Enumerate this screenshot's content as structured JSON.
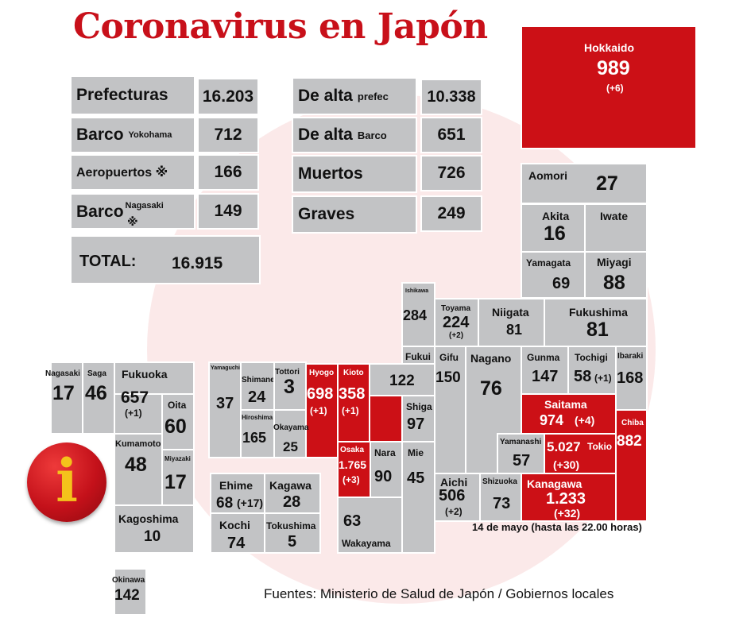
{
  "title": "Coronavirus en Japón",
  "summary": {
    "prefecturas": {
      "label": "Prefecturas",
      "value": "16.203"
    },
    "barco_yokohama": {
      "label": "Barco",
      "sub": "Yokohama",
      "value": "712"
    },
    "aeropuertos": {
      "label": "Aeropuertos ※",
      "value": "166"
    },
    "barco_nagasaki": {
      "label": "Barco",
      "mark": "※",
      "sub": "Nagasaki",
      "value": "149"
    },
    "total": {
      "label": "TOTAL:",
      "value": "16.915"
    },
    "alta_prefec": {
      "label": "De alta",
      "sub": "prefec",
      "value": "10.338"
    },
    "alta_barco": {
      "label": "De alta",
      "sub": "Barco",
      "value": "651"
    },
    "muertos": {
      "label": "Muertos",
      "value": "726"
    },
    "graves": {
      "label": "Graves",
      "value": "249"
    }
  },
  "prefectures": {
    "hokkaido": {
      "name": "Hokkaido",
      "value": "989",
      "delta": "(+6)"
    },
    "aomori": {
      "name": "Aomori",
      "value": "27"
    },
    "akita": {
      "name": "Akita",
      "value": "16"
    },
    "iwate": {
      "name": "Iwate"
    },
    "yamagata": {
      "name": "Yamagata",
      "value": "69"
    },
    "miyagi": {
      "name": "Miyagi",
      "value": "88"
    },
    "ishikawa": {
      "name": "Ishikawa",
      "value": "284"
    },
    "toyama": {
      "name": "Toyama",
      "value": "224",
      "delta": "(+2)"
    },
    "niigata": {
      "name": "Niigata",
      "value": "81"
    },
    "fukushima": {
      "name": "Fukushima",
      "value": "81"
    },
    "fukui": {
      "name": "Fukui",
      "value": "122"
    },
    "gifu": {
      "name": "Gifu",
      "value": "150"
    },
    "nagano": {
      "name": "Nagano",
      "value": "76"
    },
    "gunma": {
      "name": "Gunma",
      "value": "147"
    },
    "tochigi": {
      "name": "Tochigi",
      "value": "58",
      "delta": "(+1)"
    },
    "ibaraki": {
      "name": "Ibaraki",
      "value": "168"
    },
    "saitama": {
      "name": "Saitama",
      "value": "974",
      "delta": "(+4)"
    },
    "chiba": {
      "name": "Chiba",
      "value": "882"
    },
    "tokio": {
      "name": "Tokio",
      "value": "5.027",
      "delta": "(+30)"
    },
    "yamanashi": {
      "name": "Yamanashi",
      "value": "57"
    },
    "kanagawa": {
      "name": "Kanagawa",
      "value": "1.233",
      "delta": "(+32)"
    },
    "shizuoka": {
      "name": "Shizuoka",
      "value": "73"
    },
    "aichi": {
      "name": "Aichi",
      "value": "506",
      "delta": "(+2)"
    },
    "shiga": {
      "name": "Shiga",
      "value": "97"
    },
    "mie": {
      "name": "Mie",
      "value": "45"
    },
    "nara": {
      "name": "Nara",
      "value": "90"
    },
    "kioto": {
      "name": "Kioto",
      "value": "358",
      "delta": "(+1)"
    },
    "osaka": {
      "name": "Osaka",
      "value": "1.765",
      "delta": "(+3)"
    },
    "hyogo": {
      "name": "Hyogo",
      "value": "698",
      "delta": "(+1)"
    },
    "wakayama": {
      "name": "Wakayama",
      "value": "63"
    },
    "tottori": {
      "name": "Tottori",
      "value": "3"
    },
    "shimane": {
      "name": "Shimane",
      "value": "24"
    },
    "yamaguchi": {
      "name": "Yamaguchi",
      "value": "37"
    },
    "hiroshima": {
      "name": "Hiroshima",
      "value": "165"
    },
    "okayama": {
      "name": "Okayama",
      "value": "25"
    },
    "ehime": {
      "name": "Ehime",
      "value": "68",
      "delta": "(+17)"
    },
    "kagawa": {
      "name": "Kagawa",
      "value": "28"
    },
    "kochi": {
      "name": "Kochi",
      "value": "74"
    },
    "tokushima": {
      "name": "Tokushima",
      "value": "5"
    },
    "nagasaki": {
      "name": "Nagasaki",
      "value": "17"
    },
    "saga": {
      "name": "Saga",
      "value": "46"
    },
    "fukuoka": {
      "name": "Fukuoka",
      "value": "657",
      "delta": "(+1)"
    },
    "oita": {
      "name": "Oita",
      "value": "60"
    },
    "kumamoto": {
      "name": "Kumamoto",
      "value": "48"
    },
    "miyazaki": {
      "name": "Miyazaki",
      "value": "17"
    },
    "kagoshima": {
      "name": "Kagoshima",
      "value": "10"
    },
    "okinawa": {
      "name": "Okinawa",
      "value": "142"
    }
  },
  "date_note": "14 de mayo  (hasta las 22.00 horas)",
  "sources": "Fuentes: Ministerio de Salud de Japón / Gobiernos locales",
  "info_icon": {
    "glyph": "i",
    "color": "#c4111a",
    "glyph_color": "#f4c21b"
  },
  "colors": {
    "highlight": "#cc1016",
    "tile": "#c2c3c5",
    "title": "#c8101a"
  }
}
